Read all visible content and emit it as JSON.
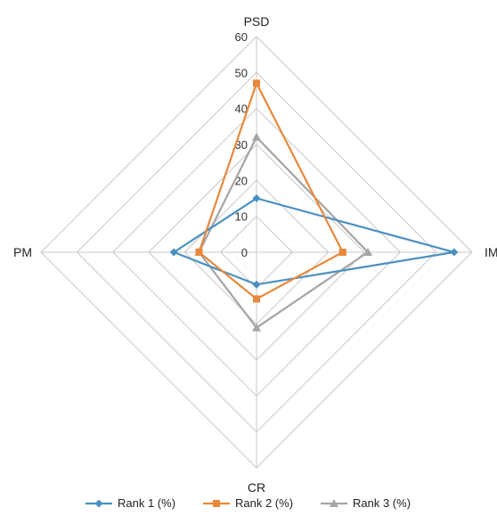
{
  "chart_data": {
    "type": "radar",
    "axes": [
      "PSD",
      "IM",
      "CR",
      "PM"
    ],
    "range": [
      0,
      60
    ],
    "ticks": [
      "0",
      "10",
      "20",
      "30",
      "40",
      "50",
      "60"
    ],
    "gridlines": true,
    "legend_position": "bottom",
    "series": [
      {
        "name": "Rank 1 (%)",
        "values": [
          15,
          55,
          9,
          23
        ],
        "color": "#4A90C2",
        "marker": "diamond"
      },
      {
        "name": "Rank 2 (%)",
        "values": [
          47,
          24,
          13,
          16
        ],
        "color": "#E8883A",
        "marker": "square"
      },
      {
        "name": "Rank 3 (%)",
        "values": [
          32,
          31,
          21,
          16
        ],
        "color": "#A5A5A5",
        "marker": "triangle"
      }
    ]
  }
}
